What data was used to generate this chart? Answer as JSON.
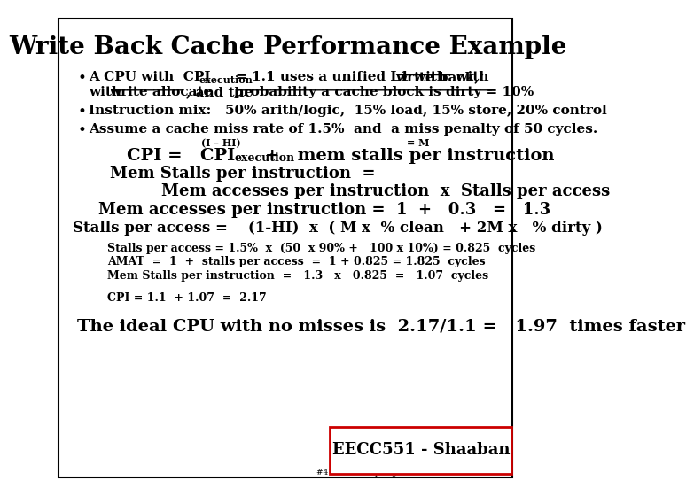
{
  "title": "Write Back Cache Performance Example",
  "bg_color": "#ffffff",
  "border_color": "#000000",
  "text_color": "#000000",
  "title_fontsize": 20,
  "body_fontsize": 11,
  "small_fontsize": 9,
  "footer_label": "EECC551 - Shaaban",
  "footer_sub": "#47  lec #8  Spring 2013  4-10-2013"
}
